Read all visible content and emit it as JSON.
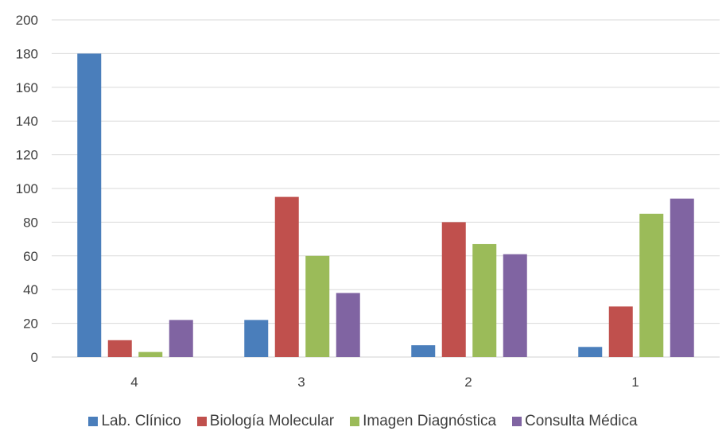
{
  "chart_data": {
    "type": "bar",
    "title": "",
    "xlabel": "",
    "ylabel": "",
    "categories": [
      "4",
      "3",
      "2",
      "1"
    ],
    "ylim": [
      0,
      200
    ],
    "yticks": [
      0,
      20,
      40,
      60,
      80,
      100,
      120,
      140,
      160,
      180,
      200
    ],
    "grid": true,
    "legend_position": "bottom",
    "series": [
      {
        "name": "Lab. Clínico",
        "color": "#4a7ebb",
        "values": [
          180,
          22,
          7,
          6
        ]
      },
      {
        "name": "Biología Molecular",
        "color": "#c0504d",
        "values": [
          10,
          95,
          80,
          30
        ]
      },
      {
        "name": "Imagen Diagnóstica",
        "color": "#9bbb59",
        "values": [
          3,
          60,
          67,
          85
        ]
      },
      {
        "name": "Consulta Médica",
        "color": "#8064a2",
        "values": [
          22,
          38,
          61,
          94
        ]
      }
    ]
  }
}
